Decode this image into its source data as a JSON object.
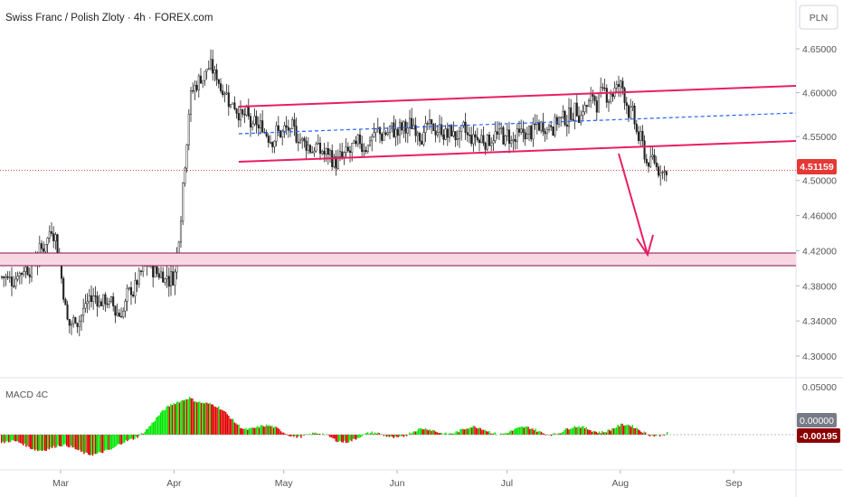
{
  "header": {
    "title": "Swiss Franc / Polish Zloty · 4h · FOREX.com",
    "currency_button": "PLN"
  },
  "price_axis": {
    "ticks": [
      "4.65000",
      "4.60000",
      "4.55000",
      "4.50000",
      "4.46000",
      "4.42000",
      "4.38000",
      "4.34000",
      "4.30000"
    ],
    "current_price": "4.51159"
  },
  "macd": {
    "label": "MACD 4C",
    "ticks": [
      "0.05000"
    ],
    "zero_label": "0.00000",
    "current_label": "-0.00195"
  },
  "time_axis": {
    "ticks": [
      "Mar",
      "Apr",
      "May",
      "Jun",
      "Jul",
      "Aug",
      "Sep"
    ]
  },
  "colors": {
    "channel": "#e91e63",
    "zone_fill": "#f8d7e3",
    "zone_line": "#880e4f",
    "midline": "#2962ff",
    "current_price_bg": "#e53935",
    "macd_pos": "#00e600",
    "macd_neg": "#e00000",
    "candle": "#222222"
  },
  "chart_data": {
    "type": "candlestick",
    "symbol": "CHFPLN",
    "timeframe": "4h",
    "y_range": [
      4.29,
      4.68
    ],
    "price_path_approx": [
      {
        "t": "Feb-15",
        "p": 4.39
      },
      {
        "t": "Feb-22",
        "p": 4.41
      },
      {
        "t": "Feb-27",
        "p": 4.45
      },
      {
        "t": "Mar-03",
        "p": 4.33
      },
      {
        "t": "Mar-10",
        "p": 4.37
      },
      {
        "t": "Mar-17",
        "p": 4.35
      },
      {
        "t": "Mar-24",
        "p": 4.4
      },
      {
        "t": "Apr-01",
        "p": 4.39
      },
      {
        "t": "Apr-05",
        "p": 4.6
      },
      {
        "t": "Apr-10",
        "p": 4.63
      },
      {
        "t": "Apr-15",
        "p": 4.6
      },
      {
        "t": "Apr-22",
        "p": 4.56
      },
      {
        "t": "May-05",
        "p": 4.55
      },
      {
        "t": "May-15",
        "p": 4.52
      },
      {
        "t": "May-25",
        "p": 4.55
      },
      {
        "t": "Jun-05",
        "p": 4.56
      },
      {
        "t": "Jun-20",
        "p": 4.55
      },
      {
        "t": "Jul-05",
        "p": 4.55
      },
      {
        "t": "Jul-20",
        "p": 4.58
      },
      {
        "t": "Aug-01",
        "p": 4.61
      },
      {
        "t": "Aug-08",
        "p": 4.52
      },
      {
        "t": "Aug-18",
        "p": 4.51159
      }
    ],
    "macd_values_approx": [
      {
        "t": "Feb",
        "v": -0.01
      },
      {
        "t": "Mar",
        "v": -0.02
      },
      {
        "t": "Apr-05",
        "v": 0.045
      },
      {
        "t": "Apr-20",
        "v": 0.01
      },
      {
        "t": "May",
        "v": -0.005
      },
      {
        "t": "Jun",
        "v": 0.005
      },
      {
        "t": "Jul",
        "v": 0.004
      },
      {
        "t": "Aug-01",
        "v": 0.008
      },
      {
        "t": "Aug-18",
        "v": -0.00195
      }
    ]
  }
}
